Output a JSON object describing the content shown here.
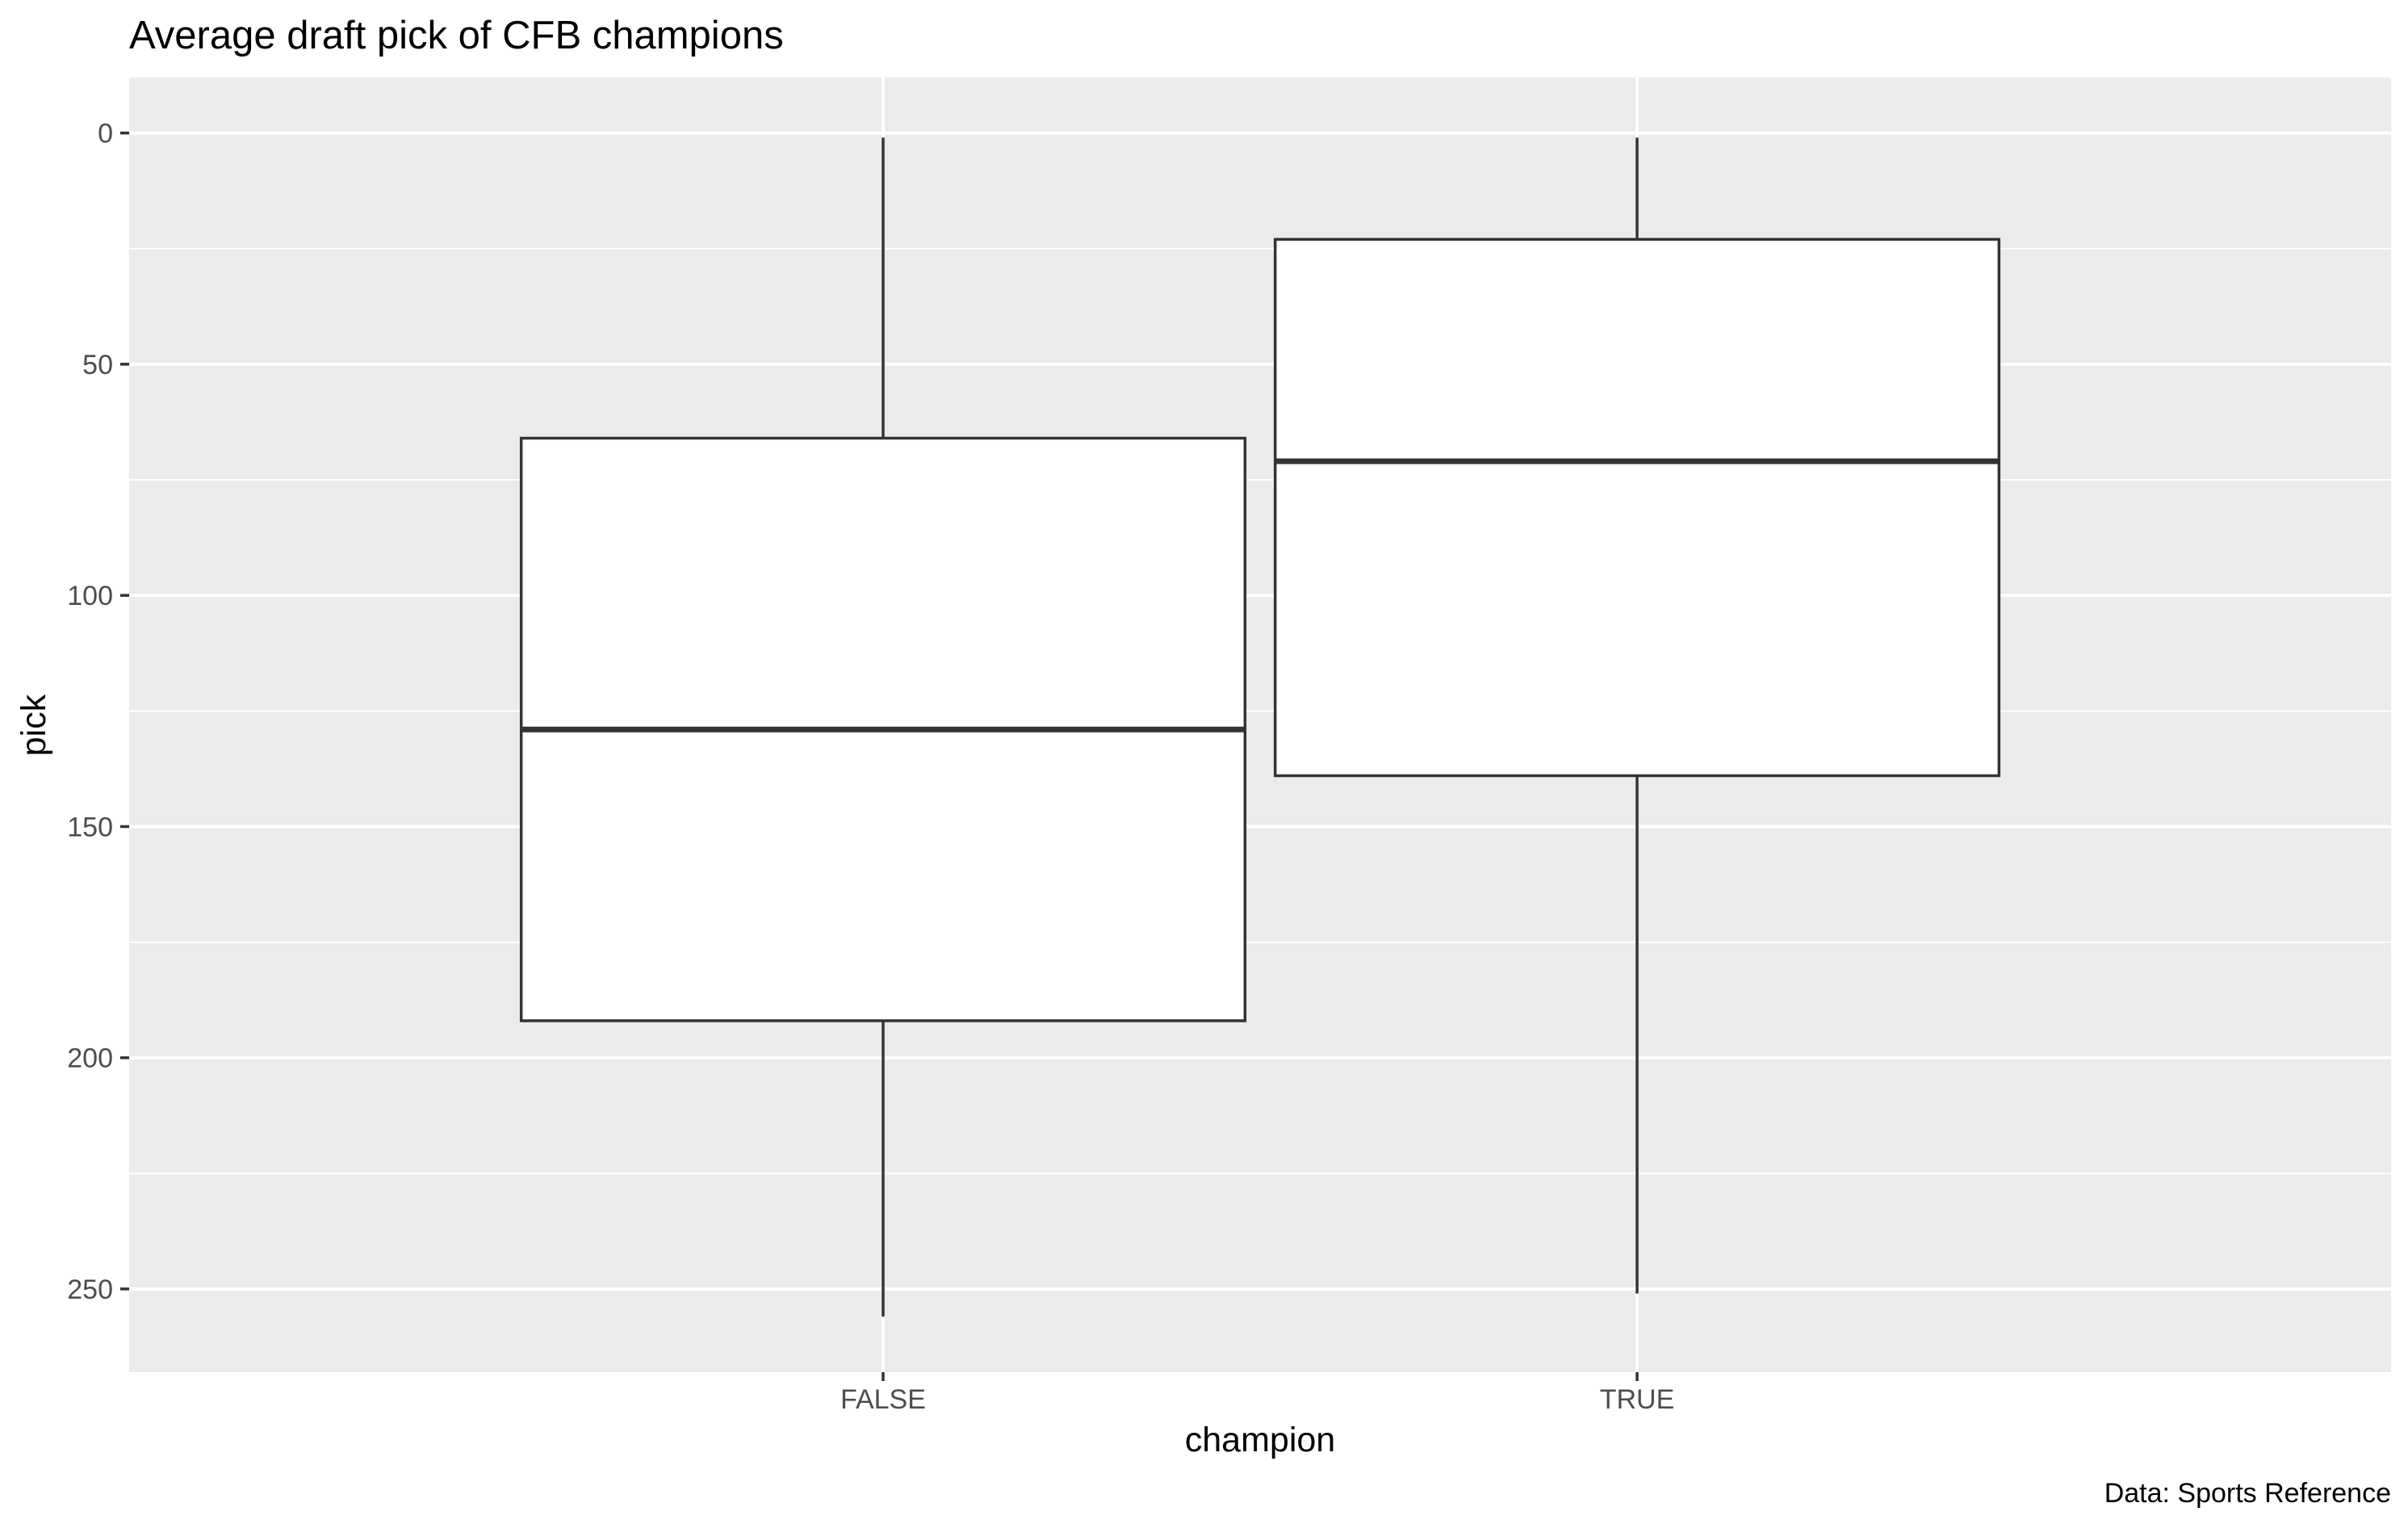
{
  "chart_data": {
    "type": "boxplot",
    "title": "Average draft pick of CFB champions",
    "xlabel": "champion",
    "ylabel": "pick",
    "caption": "Data: Sports Reference",
    "categories": [
      "FALSE",
      "TRUE"
    ],
    "boxes": [
      {
        "category": "FALSE",
        "whisker_low": 1,
        "q1": 66,
        "median": 129,
        "q3": 192,
        "whisker_high": 256
      },
      {
        "category": "TRUE",
        "whisker_low": 1,
        "q1": 23,
        "median": 71,
        "q3": 139,
        "whisker_high": 251
      }
    ],
    "y_ticks": [
      0,
      50,
      100,
      150,
      200,
      250
    ],
    "y_tick_labels": [
      "0",
      "50",
      "100",
      "150",
      "200",
      "250"
    ],
    "y_reversed": true,
    "ylim": [
      -12,
      268
    ],
    "grid": true,
    "colors": {
      "panel_background": "#ebebeb",
      "grid": "#ffffff",
      "box_fill": "#ffffff",
      "box_line": "#333333"
    }
  }
}
